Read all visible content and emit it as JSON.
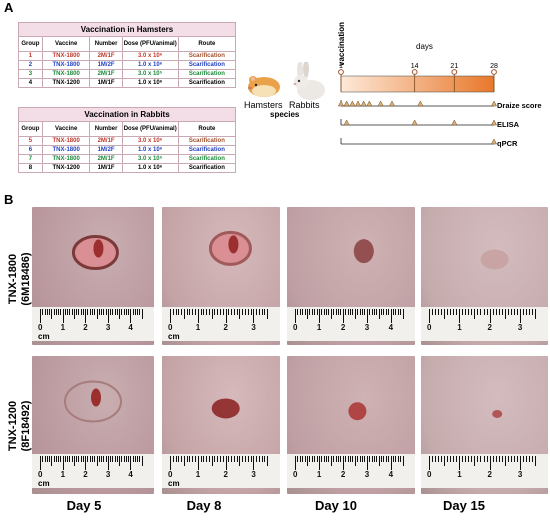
{
  "panels": {
    "a": "A",
    "b": "B"
  },
  "hamster_table": {
    "title": "Vaccination in Hamsters",
    "headers": [
      "Group",
      "Vaccine",
      "Number",
      "Dose (PFU/animal)",
      "Route"
    ],
    "rows": [
      {
        "group": "1",
        "vaccine": "TNX-1800",
        "number": "2M/1F",
        "dose": "3.0 x 10⁶",
        "route": "Scarification",
        "color": "red"
      },
      {
        "group": "2",
        "vaccine": "TNX-1800",
        "number": "1M/2F",
        "dose": "1.0 x 10⁶",
        "route": "Scarification",
        "color": "blue"
      },
      {
        "group": "3",
        "vaccine": "TNX-1800",
        "number": "2M/1F",
        "dose": "3.0 x 10⁵",
        "route": "Scarification",
        "color": "green"
      },
      {
        "group": "4",
        "vaccine": "TNX-1200",
        "number": "1M/1F",
        "dose": "1.0 x 10⁶",
        "route": "Scarification",
        "color": "black"
      }
    ]
  },
  "rabbit_table": {
    "title": "Vaccination in Rabbits",
    "headers": [
      "Group",
      "Vaccine",
      "Number",
      "Dose (PFU/animal)",
      "Route"
    ],
    "rows": [
      {
        "group": "5",
        "vaccine": "TNX-1800",
        "number": "2M/1F",
        "dose": "3.0 x 10⁶",
        "route": "Scarification",
        "color": "red"
      },
      {
        "group": "6",
        "vaccine": "TNX-1800",
        "number": "1M/2F",
        "dose": "1.0 x 10⁶",
        "route": "Scarification",
        "color": "blue"
      },
      {
        "group": "7",
        "vaccine": "TNX-1800",
        "number": "2M/1F",
        "dose": "3.0 x 10⁵",
        "route": "Scarification",
        "color": "green"
      },
      {
        "group": "8",
        "vaccine": "TNX-1200",
        "number": "1M/1F",
        "dose": "1.0 x 10⁶",
        "route": "Scarification",
        "color": "black"
      }
    ]
  },
  "species": {
    "hamsters": "Hamsters",
    "rabbits": "Rabbits",
    "label": "species"
  },
  "timeline": {
    "vaccination_label": "vaccination",
    "days_label": "days",
    "day_ticks": [
      1,
      14,
      21,
      28
    ],
    "tracks": [
      {
        "name": "Draize score",
        "days": [
          1,
          2,
          3,
          4,
          5,
          6,
          8,
          10,
          15,
          28
        ]
      },
      {
        "name": "ELISA",
        "days": [
          2,
          14,
          21,
          28
        ]
      },
      {
        "name": "qPCR",
        "days": [
          28
        ]
      }
    ]
  },
  "rows": [
    {
      "label": "TNX-1800",
      "sublabel": "(6M18486)"
    },
    {
      "label": "TNX-1200",
      "sublabel": "(8F18492)"
    }
  ],
  "days": [
    "Day 5",
    "Day 8",
    "Day 10",
    "Day 15"
  ],
  "ruler_unit": "cm",
  "ruler_numbers": [
    "0",
    "1",
    "2",
    "3",
    "4"
  ],
  "colors": {
    "red": "#c0392b",
    "blue": "#1f3fbf",
    "green": "#1c8a3a",
    "black": "#000000",
    "timeline_start": "#fde9d9",
    "timeline_end": "#e8782a",
    "triangle": "#d9b07a"
  }
}
